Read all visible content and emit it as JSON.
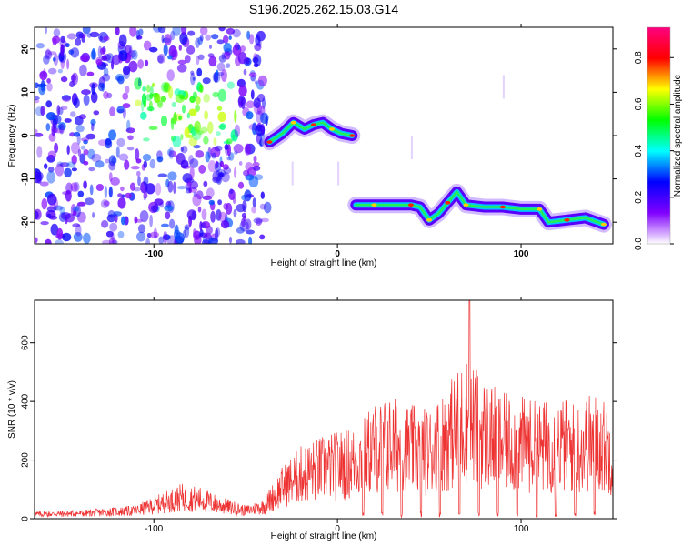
{
  "title": "S196.2025.262.15.03.G14",
  "chart_data": [
    {
      "type": "heatmap",
      "xlabel": "Height of straight line (km)",
      "ylabel": "Frequency (Hz)",
      "xlim": [
        -165,
        150
      ],
      "ylim": [
        -25,
        25
      ],
      "x_ticks": [
        -100,
        0,
        100
      ],
      "y_ticks": [
        -20,
        -10,
        0,
        10,
        20
      ],
      "colorbar": {
        "label": "Normalized spectral amplitude",
        "range": [
          0,
          0.93
        ],
        "ticks": [
          "0.0",
          "0.2",
          "0.4",
          "0.6",
          "0.8"
        ],
        "colors": [
          "#ffffff",
          "#8000ff",
          "#0000ff",
          "#00ffff",
          "#00ff00",
          "#ffff00",
          "#ff0000",
          "#ff0080"
        ]
      },
      "ridge": [
        {
          "x": -37,
          "y": -1.5
        },
        {
          "x": -30,
          "y": 0.5
        },
        {
          "x": -24,
          "y": 3
        },
        {
          "x": -18,
          "y": 1.5
        },
        {
          "x": -13,
          "y": 2.5
        },
        {
          "x": -8,
          "y": 3
        },
        {
          "x": -3,
          "y": 1.5
        },
        {
          "x": 2,
          "y": 0.5
        },
        {
          "x": 8,
          "y": 0
        },
        {
          "x": 10,
          "y": -16
        },
        {
          "x": 20,
          "y": -16
        },
        {
          "x": 30,
          "y": -16
        },
        {
          "x": 40,
          "y": -16
        },
        {
          "x": 45,
          "y": -16.5
        },
        {
          "x": 50,
          "y": -19.5
        },
        {
          "x": 55,
          "y": -18
        },
        {
          "x": 60,
          "y": -15.5
        },
        {
          "x": 65,
          "y": -13
        },
        {
          "x": 70,
          "y": -16
        },
        {
          "x": 80,
          "y": -16.5
        },
        {
          "x": 90,
          "y": -16.5
        },
        {
          "x": 100,
          "y": -17
        },
        {
          "x": 110,
          "y": -17
        },
        {
          "x": 115,
          "y": -20
        },
        {
          "x": 125,
          "y": -19.5
        },
        {
          "x": 135,
          "y": -19
        },
        {
          "x": 145,
          "y": -20.5
        }
      ],
      "noise_region": {
        "x_range": [
          -165,
          -38
        ],
        "y_range": [
          -25,
          25
        ]
      }
    },
    {
      "type": "line",
      "xlabel": "Height of straight line (km)",
      "ylabel": "SNR (10 * v/v)",
      "xlim": [
        -165,
        150
      ],
      "ylim": [
        0,
        745
      ],
      "x_ticks": [
        -100,
        0,
        100
      ],
      "y_ticks": [
        0,
        200,
        400,
        600
      ],
      "series": [
        {
          "color": "#ee3333",
          "envelope": [
            {
              "x": -165,
              "y": 25
            },
            {
              "x": -140,
              "y": 30
            },
            {
              "x": -110,
              "y": 45
            },
            {
              "x": -95,
              "y": 90
            },
            {
              "x": -85,
              "y": 120
            },
            {
              "x": -75,
              "y": 110
            },
            {
              "x": -65,
              "y": 80
            },
            {
              "x": -50,
              "y": 45
            },
            {
              "x": -40,
              "y": 70
            },
            {
              "x": -30,
              "y": 180
            },
            {
              "x": -20,
              "y": 250
            },
            {
              "x": -10,
              "y": 280
            },
            {
              "x": 0,
              "y": 300
            },
            {
              "x": 10,
              "y": 320
            },
            {
              "x": 20,
              "y": 400
            },
            {
              "x": 30,
              "y": 420
            },
            {
              "x": 40,
              "y": 390
            },
            {
              "x": 50,
              "y": 380
            },
            {
              "x": 60,
              "y": 460
            },
            {
              "x": 70,
              "y": 560
            },
            {
              "x": 80,
              "y": 480
            },
            {
              "x": 90,
              "y": 430
            },
            {
              "x": 100,
              "y": 420
            },
            {
              "x": 110,
              "y": 400
            },
            {
              "x": 120,
              "y": 420
            },
            {
              "x": 130,
              "y": 400
            },
            {
              "x": 140,
              "y": 440
            },
            {
              "x": 150,
              "y": 380
            }
          ],
          "peak": {
            "x": 72,
            "y": 745
          }
        }
      ]
    }
  ]
}
